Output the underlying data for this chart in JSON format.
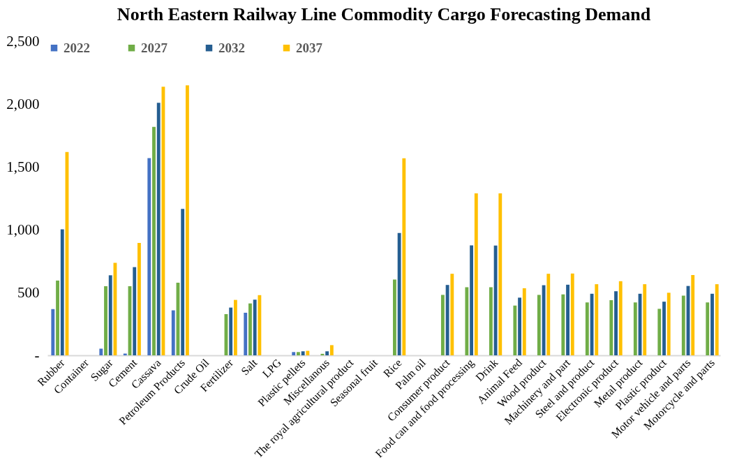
{
  "chart_data": {
    "type": "bar",
    "title": "North Eastern Railway Line Commodity Cargo Forecasting Demand",
    "categories": [
      "Rubber",
      "Container",
      "Sugar",
      "Cement",
      "Cassava",
      "Petroleum Products",
      "Crude Oil",
      "Fertilizer",
      "Salt",
      "LPG",
      "Plastic pellets",
      "Miscellanous",
      "The royal agricultural product",
      "Seasonal fruit",
      "Rice",
      "Palm oil",
      "Consumer product",
      "Food can and food processing",
      "Drink",
      "Animal Feed",
      "Wood product",
      "Machinery and part",
      "Steel and product",
      "Electronic product",
      "Metal product",
      "Plastic product",
      "Motor vehicle and parts",
      "Motorcycle and parts"
    ],
    "series": [
      {
        "name": "2022",
        "color": "#4472c4",
        "values": [
          368,
          null,
          53,
          14,
          1570,
          358,
          null,
          null,
          339,
          null,
          26,
          null,
          null,
          null,
          null,
          null,
          null,
          null,
          null,
          null,
          null,
          null,
          null,
          null,
          null,
          null,
          null,
          null
        ]
      },
      {
        "name": "2027",
        "color": "#70ad47",
        "values": [
          595,
          null,
          550,
          550,
          1818,
          578,
          null,
          328,
          413,
          null,
          26,
          12,
          null,
          null,
          603,
          null,
          481,
          542,
          542,
          396,
          481,
          485,
          421,
          439,
          421,
          370,
          475,
          421
        ]
      },
      {
        "name": "2032",
        "color": "#255e91",
        "values": [
          1003,
          null,
          637,
          702,
          2010,
          1165,
          null,
          380,
          443,
          null,
          32,
          32,
          null,
          null,
          973,
          null,
          560,
          875,
          874,
          459,
          558,
          562,
          490,
          510,
          490,
          427,
          552,
          490
        ]
      },
      {
        "name": "2037",
        "color": "#ffc000",
        "values": [
          1618,
          null,
          736,
          894,
          2138,
          2148,
          null,
          441,
          479,
          null,
          36,
          81,
          null,
          null,
          1568,
          null,
          649,
          1289,
          1289,
          534,
          649,
          651,
          566,
          590,
          566,
          498,
          639,
          566
        ]
      }
    ],
    "ylim": [
      0,
      2500
    ],
    "yticks": [
      {
        "value": 0,
        "label": "-"
      },
      500,
      {
        "value": 1000,
        "label": "1,000"
      },
      {
        "value": 1500,
        "label": "1,500"
      },
      {
        "value": 2000,
        "label": "2,000"
      },
      {
        "value": 2500,
        "label": "2,500"
      }
    ],
    "legend": "top"
  }
}
